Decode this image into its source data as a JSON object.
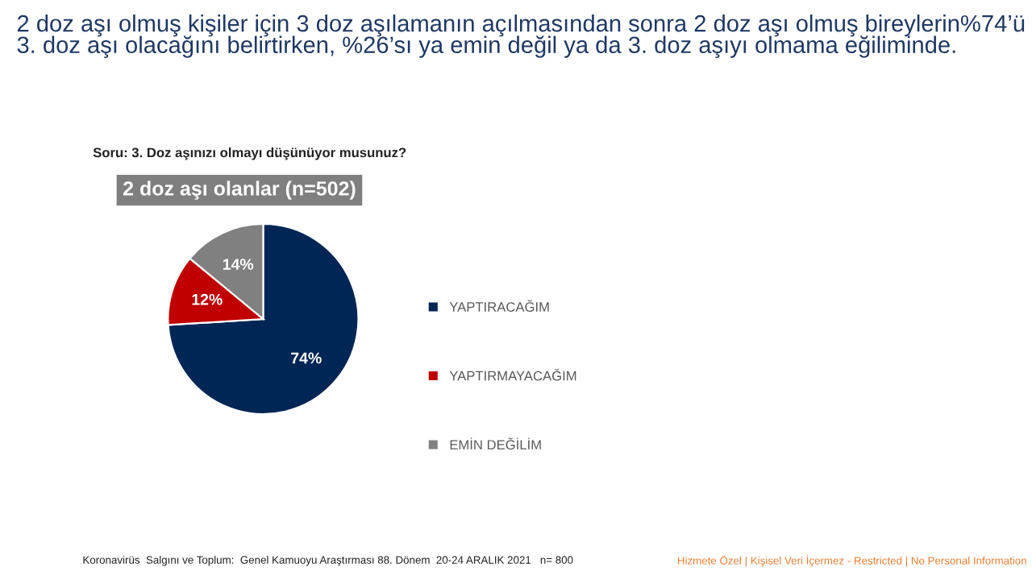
{
  "chart_data": {
    "type": "pie",
    "title": "2 doz aşı olmuş kişiler için 3 doz aşılamanın açılmasından sonra 2 doz aşı olmuş bireylerin%74’ü 3. doz aşı olacağını belirtirken, %26’sı ya emin değil ya da 3. doz aşıyı olmama eğiliminde.",
    "subtitle": "Soru: 3. Doz aşınızı olmayı düşünüyor musunuz?",
    "categories": [
      "YAPTIRACAĞIM",
      "YAPTIRMAYACAĞIM",
      "EMİN DEĞİLİM"
    ],
    "values": [
      74,
      12,
      14
    ],
    "colors": [
      "#002655",
      "#c00000",
      "#808080"
    ],
    "value_labels": [
      "74%",
      "12%",
      "14%"
    ],
    "legend": "right",
    "annotations": [
      "2 doz aşı olanlar (n=502)",
      "Koronavirüs  Salgını ve Toplum:  Genel Kamuoyu Araştırması 88. Dönem  20-24 ARALIK 2021   n= 800",
      "Hizmete Özel | Kişisel Veri İçermez - Restricted | No Personal Information"
    ]
  }
}
